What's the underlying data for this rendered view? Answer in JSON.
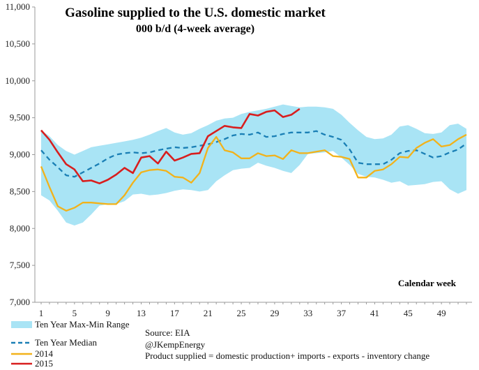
{
  "chart_data": {
    "type": "line",
    "title": "Gasoline supplied to the U.S. domestic market",
    "subtitle": "000 b/d (4-week average)",
    "xlabel": "Calendar week",
    "ylabel": "",
    "xlim": [
      1,
      52
    ],
    "ylim": [
      7000,
      11000
    ],
    "x_ticks": [
      1,
      5,
      9,
      13,
      17,
      21,
      25,
      29,
      33,
      37,
      41,
      45,
      49
    ],
    "y_ticks": [
      "7,000",
      "7,500",
      "8,000",
      "8,500",
      "9,000",
      "9,500",
      "10,000",
      "10,500",
      "11,000"
    ],
    "y_tick_values": [
      7000,
      7500,
      8000,
      8500,
      9000,
      9500,
      10000,
      10500,
      11000
    ],
    "grid": false,
    "legend_position": "bottom-left",
    "range": {
      "name": "Ten Year Max-Min Range",
      "color": "#a9e4f5",
      "x": [
        1,
        2,
        3,
        4,
        5,
        6,
        7,
        8,
        9,
        10,
        11,
        12,
        13,
        14,
        15,
        16,
        17,
        18,
        19,
        20,
        21,
        22,
        23,
        24,
        25,
        26,
        27,
        28,
        29,
        30,
        31,
        32,
        33,
        34,
        35,
        36,
        37,
        38,
        39,
        40,
        41,
        42,
        43,
        44,
        45,
        46,
        47,
        48,
        49,
        50,
        51,
        52
      ],
      "max": [
        9330,
        9250,
        9130,
        9050,
        9000,
        9050,
        9100,
        9120,
        9140,
        9160,
        9180,
        9200,
        9230,
        9270,
        9320,
        9360,
        9300,
        9270,
        9290,
        9350,
        9400,
        9460,
        9490,
        9500,
        9550,
        9580,
        9600,
        9620,
        9650,
        9680,
        9660,
        9640,
        9650,
        9650,
        9640,
        9620,
        9540,
        9430,
        9330,
        9240,
        9210,
        9220,
        9270,
        9380,
        9400,
        9350,
        9290,
        9280,
        9300,
        9400,
        9420,
        9350
      ],
      "min": [
        8450,
        8380,
        8240,
        8080,
        8040,
        8080,
        8190,
        8310,
        8330,
        8330,
        8370,
        8460,
        8470,
        8450,
        8460,
        8480,
        8510,
        8530,
        8520,
        8500,
        8520,
        8640,
        8720,
        8790,
        8810,
        8820,
        8890,
        8850,
        8820,
        8780,
        8750,
        8860,
        9010,
        9020,
        9030,
        9050,
        8960,
        8860,
        8740,
        8700,
        8690,
        8660,
        8620,
        8640,
        8580,
        8590,
        8600,
        8630,
        8640,
        8530,
        8470,
        8520
      ]
    },
    "series": [
      {
        "name": "Ten Year Median",
        "color": "#1a7fb5",
        "style": "dashed",
        "x": [
          1,
          2,
          3,
          4,
          5,
          6,
          7,
          8,
          9,
          10,
          11,
          12,
          13,
          14,
          15,
          16,
          17,
          18,
          19,
          20,
          21,
          22,
          23,
          24,
          25,
          26,
          27,
          28,
          29,
          30,
          31,
          32,
          33,
          34,
          35,
          36,
          37,
          38,
          39,
          40,
          41,
          42,
          43,
          44,
          45,
          46,
          47,
          48,
          49,
          50,
          51,
          52
        ],
        "values": [
          9060,
          8930,
          8830,
          8720,
          8700,
          8760,
          8820,
          8880,
          8950,
          9000,
          9020,
          9030,
          9020,
          9030,
          9060,
          9080,
          9100,
          9090,
          9100,
          9120,
          9140,
          9170,
          9210,
          9260,
          9280,
          9270,
          9300,
          9240,
          9250,
          9280,
          9300,
          9300,
          9300,
          9320,
          9270,
          9240,
          9200,
          9070,
          8890,
          8870,
          8870,
          8870,
          8930,
          9020,
          9050,
          9060,
          9010,
          8960,
          8980,
          9030,
          9070,
          9150
        ]
      },
      {
        "name": "2014",
        "color": "#f2b21a",
        "style": "solid",
        "x": [
          1,
          2,
          3,
          4,
          5,
          6,
          7,
          8,
          9,
          10,
          11,
          12,
          13,
          14,
          15,
          16,
          17,
          18,
          19,
          20,
          21,
          22,
          23,
          24,
          25,
          26,
          27,
          28,
          29,
          30,
          31,
          32,
          33,
          34,
          35,
          36,
          37,
          38,
          39,
          40,
          41,
          42,
          43,
          44,
          45,
          46,
          47,
          48,
          49,
          50,
          51,
          52
        ],
        "values": [
          8840,
          8560,
          8300,
          8240,
          8280,
          8350,
          8350,
          8340,
          8330,
          8330,
          8450,
          8620,
          8760,
          8790,
          8800,
          8780,
          8700,
          8690,
          8620,
          8750,
          9090,
          9240,
          9060,
          9030,
          8950,
          8950,
          9020,
          8980,
          8990,
          8940,
          9060,
          9020,
          9020,
          9040,
          9060,
          8980,
          8970,
          8940,
          8690,
          8690,
          8780,
          8800,
          8870,
          8970,
          8960,
          9090,
          9160,
          9210,
          9110,
          9130,
          9210,
          9270
        ]
      },
      {
        "name": "2015",
        "color": "#d81e1e",
        "style": "solid",
        "x": [
          1,
          2,
          3,
          4,
          5,
          6,
          7,
          8,
          9,
          10,
          11,
          12,
          13,
          14,
          15,
          16,
          17,
          18,
          19,
          20,
          21,
          22,
          23,
          24,
          25,
          26,
          27,
          28,
          29,
          30,
          31,
          32
        ],
        "values": [
          9330,
          9200,
          9030,
          8870,
          8800,
          8640,
          8650,
          8610,
          8660,
          8730,
          8820,
          8750,
          8960,
          8980,
          8880,
          9040,
          8920,
          8960,
          9010,
          9020,
          9250,
          9320,
          9390,
          9370,
          9360,
          9550,
          9530,
          9580,
          9600,
          9510,
          9540,
          9620
        ]
      }
    ],
    "annotations": {
      "source": "Source: EIA",
      "handle": "@JKempEnergy",
      "definition": "Product supplied = domestic production+ imports - exports - inventory change"
    }
  }
}
